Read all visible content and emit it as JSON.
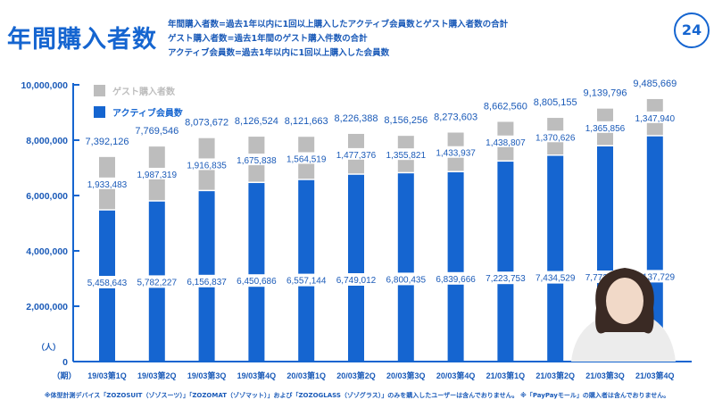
{
  "header": {
    "title": "年間購入者数",
    "notes": [
      "年間購入者数=過去1年以内に1回以上購入したアクティブ会員数とゲスト購入者数の合計",
      "ゲスト購入者数=過去1年間のゲスト購入件数の合計",
      "アクティブ会員数=過去1年以内に1回以上購入した会員数"
    ],
    "page_number": "24"
  },
  "footnote": "※体型計測デバイス「ZOZOSUIT（ゾゾスーツ）」「ZOZOMAT（ゾゾマット）」および「ZOZOGLASS（ゾゾグラス）」のみを購入したユーザーは含んでおりません。 ※「PayPayモール」の購入者は含んでおりません。",
  "colors": {
    "active": "#1565d0",
    "guest": "#bdbdbd",
    "text": "#1a5ab8"
  },
  "chart_data": {
    "type": "bar",
    "stacked": true,
    "categories": [
      "19/03第1Q",
      "19/03第2Q",
      "19/03第3Q",
      "19/03第4Q",
      "20/03第1Q",
      "20/03第2Q",
      "20/03第3Q",
      "20/03第4Q",
      "21/03第1Q",
      "21/03第2Q",
      "21/03第3Q",
      "21/03第4Q"
    ],
    "series": [
      {
        "name": "アクティブ会員数",
        "values": [
          5458643,
          5782227,
          6156837,
          6450686,
          6557144,
          6749012,
          6800435,
          6839666,
          7223753,
          7434529,
          7773940,
          8137729
        ]
      },
      {
        "name": "ゲスト購入者数",
        "values": [
          1933483,
          1987319,
          1916835,
          1675838,
          1564519,
          1477376,
          1355821,
          1433937,
          1438807,
          1370626,
          1365856,
          1347940
        ]
      }
    ],
    "totals": [
      7392126,
      7769546,
      8073672,
      8126524,
      8121663,
      8226388,
      8156256,
      8273603,
      8662560,
      8805155,
      9139796,
      9485669
    ],
    "total_labels": [
      "7,392,126",
      "7,769,546",
      "8,073,672",
      "8,126,524",
      "8,121,663",
      "8,226,388",
      "8,156,256",
      "8,273,603",
      "8,662,560",
      "8,805,155",
      "9,139,796",
      "9,485,669"
    ],
    "guest_labels": [
      "1,933,483",
      "1,987,319",
      "1,916,835",
      "1,675,838",
      "1,564,519",
      "1,477,376",
      "1,355,821",
      "1,433,937",
      "1,438,807",
      "1,370,626",
      "1,365,856",
      "1,347,940"
    ],
    "active_labels": [
      "5,458,643",
      "5,782,227",
      "6,156,837",
      "6,450,686",
      "6,557,144",
      "6,749,012",
      "6,800,435",
      "6,839,666",
      "7,223,753",
      "7,434,529",
      "7,773,940",
      "8,137,729"
    ],
    "ylim": [
      0,
      10000000
    ],
    "yticks": [
      "0",
      "2,000,000",
      "4,000,000",
      "6,000,000",
      "8,000,000",
      "10,000,000"
    ],
    "ylabel": "（人）",
    "xlabel": "（期）",
    "legend": [
      "ゲスト購入者数",
      "アクティブ会員数"
    ],
    "legend_position": "top-left",
    "grid": false
  }
}
